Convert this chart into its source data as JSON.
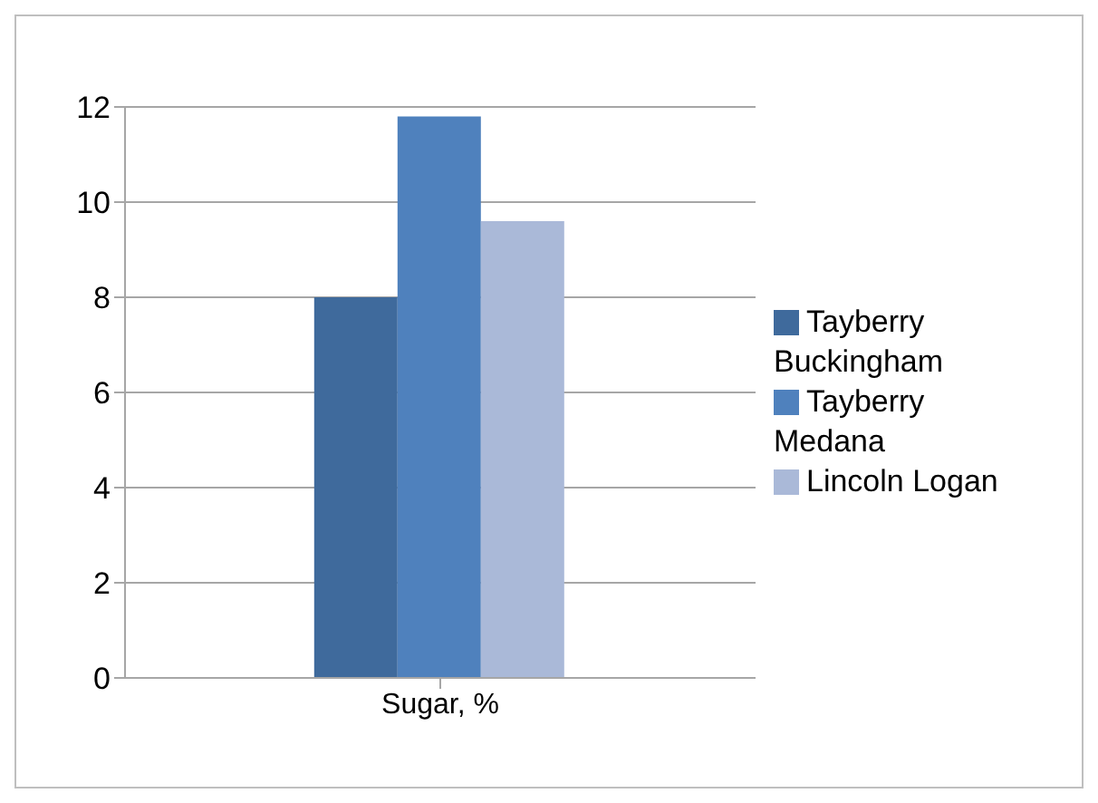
{
  "chart_data": {
    "type": "bar",
    "categories": [
      "Sugar, %"
    ],
    "series": [
      {
        "name": "Tayberry Buckingham",
        "color": "#3f6a9c",
        "values": [
          8
        ]
      },
      {
        "name": "Tayberry Medana",
        "color": "#4f81bd",
        "values": [
          11.8
        ]
      },
      {
        "name": "Lincoln Logan",
        "color": "#aab9d8",
        "values": [
          9.6
        ]
      }
    ],
    "ylim": [
      0,
      12
    ],
    "yticks": [
      0,
      2,
      4,
      6,
      8,
      10,
      12
    ],
    "grid": "y",
    "legend": "right"
  }
}
